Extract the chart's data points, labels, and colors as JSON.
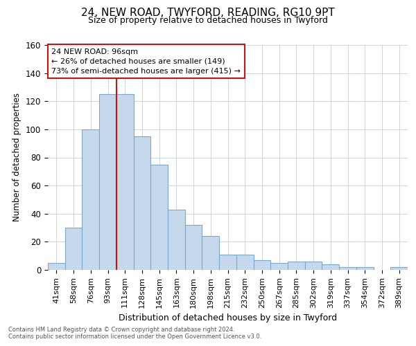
{
  "title1": "24, NEW ROAD, TWYFORD, READING, RG10 9PT",
  "title2": "Size of property relative to detached houses in Twyford",
  "xlabel": "Distribution of detached houses by size in Twyford",
  "ylabel": "Number of detached properties",
  "categories": [
    "41sqm",
    "58sqm",
    "76sqm",
    "93sqm",
    "111sqm",
    "128sqm",
    "145sqm",
    "163sqm",
    "180sqm",
    "198sqm",
    "215sqm",
    "232sqm",
    "250sqm",
    "267sqm",
    "285sqm",
    "302sqm",
    "319sqm",
    "337sqm",
    "354sqm",
    "372sqm",
    "389sqm"
  ],
  "values": [
    5,
    30,
    100,
    125,
    125,
    95,
    75,
    43,
    32,
    24,
    11,
    11,
    7,
    5,
    6,
    6,
    4,
    2,
    2,
    0,
    2
  ],
  "bar_color": "#c6d9ec",
  "bar_edge_color": "#7aa8cc",
  "vline_color": "#cc1111",
  "vline_x_idx": 3,
  "annotation_line1": "24 NEW ROAD: 96sqm",
  "annotation_line2": "← 26% of detached houses are smaller (149)",
  "annotation_line3": "73% of semi-detached houses are larger (415) →",
  "annotation_box_color": "#cc1111",
  "ylim": [
    0,
    160
  ],
  "yticks": [
    0,
    20,
    40,
    60,
    80,
    100,
    120,
    140,
    160
  ],
  "grid_color": "#c8cdd8",
  "bg_color": "#ffffff",
  "title1_fontsize": 11,
  "title2_fontsize": 9,
  "footer1": "Contains HM Land Registry data © Crown copyright and database right 2024.",
  "footer2": "Contains public sector information licensed under the Open Government Licence v3.0."
}
